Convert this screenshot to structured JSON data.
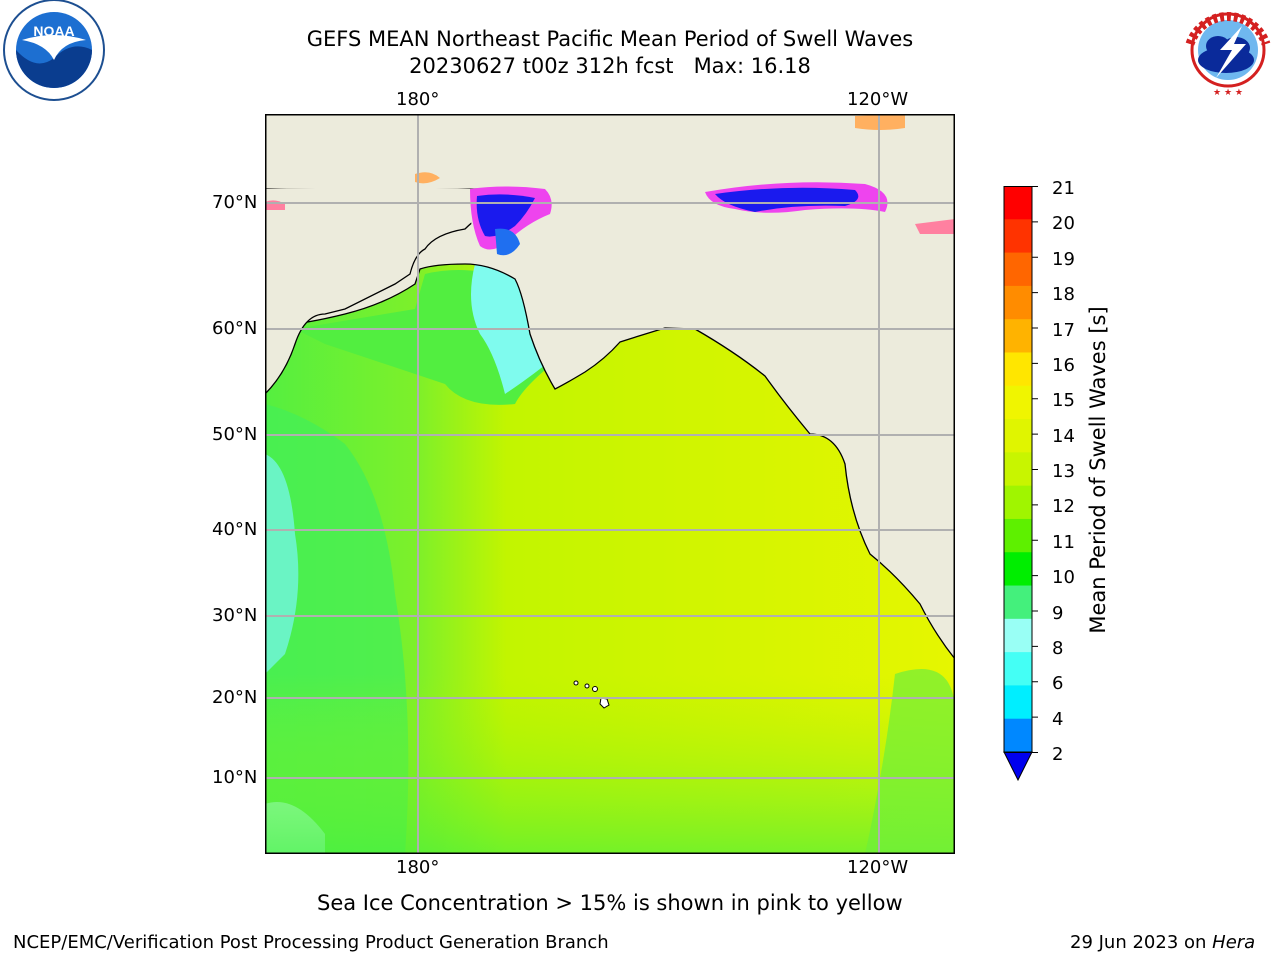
{
  "title": {
    "line1": "GEFS MEAN Northeast Pacific Mean Period of Swell Waves",
    "line2": "20230627 t00z 312h fcst   Max: 16.18"
  },
  "logos": {
    "noaa_text": "NOAA",
    "noaa_ring_text": "NATIONAL OCEANIC AND ATMOSPHERIC ADMINISTRATION · U.S. DEPARTMENT OF COMMERCE",
    "nws_ring_text": "NATIONAL WEATHER SERVICE"
  },
  "map": {
    "lon_labels_top": [
      "180°",
      "120°W"
    ],
    "lon_labels_bottom": [
      "180°",
      "120°W"
    ],
    "lat_labels": [
      "70°N",
      "60°N",
      "50°N",
      "40°N",
      "30°N",
      "20°N",
      "10°N"
    ],
    "colors": {
      "land": "#ecebdc",
      "ocean_main": "#d2f500",
      "ocean_east": "#e8f700",
      "ocean_west": "#5cf030",
      "ocean_far_west": "#38f078",
      "cyan": "#66fff0",
      "ice_blue": "#1a1aee",
      "ice_magenta": "#ee44ee",
      "ice_orange": "#ffb060",
      "grid": "#b0b0b0"
    }
  },
  "colorbar": {
    "label": "Mean Period of Swell Waves [s]",
    "ticks": [
      "21",
      "20",
      "19",
      "18",
      "17",
      "16",
      "15",
      "14",
      "13",
      "12",
      "11",
      "10",
      "9",
      "8",
      "6",
      "4",
      "2"
    ],
    "colors": [
      "#ff0000",
      "#ff3300",
      "#ff6600",
      "#ff8c00",
      "#ffb300",
      "#ffe600",
      "#f0f500",
      "#e0f500",
      "#c8f500",
      "#a0f500",
      "#5ef000",
      "#00ee00",
      "#44f07c",
      "#99fff5",
      "#44fff5",
      "#00eeff",
      "#0088ff"
    ],
    "extend_color": "#0000ee"
  },
  "footer": {
    "ice_note": "Sea Ice Concentration > 15% is shown in pink to yellow",
    "left": "NCEP/EMC/Verification Post Processing Product Generation Branch",
    "date": "29 Jun 2023 on ",
    "machine": "Hera"
  }
}
